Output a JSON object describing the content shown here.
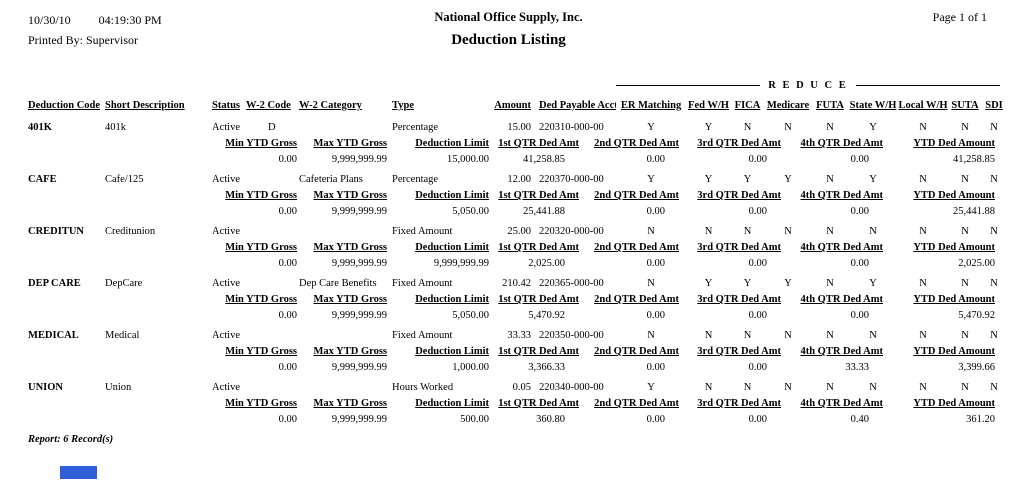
{
  "header": {
    "date": "10/30/10",
    "time": "04:19:30 PM",
    "printed_by": "Printed By: Supervisor",
    "company": "National Office Supply, Inc.",
    "title": "Deduction Listing",
    "page": "Page 1 of 1"
  },
  "reduce": {
    "label": "R E D U C E"
  },
  "columns": {
    "deduction_code": "Deduction Code",
    "short_description": "Short Description",
    "status": "Status",
    "w2_code": "W-2 Code",
    "w2_category": "W-2 Category",
    "type": "Type",
    "amount": "Amount",
    "ded_payable_acct": "Ded Payable Acct",
    "er_matching": "ER Matching",
    "fed_wh": "Fed W/H",
    "fica": "FICA",
    "medicare": "Medicare",
    "futa": "FUTA",
    "state_wh": "State W/H",
    "local_wh": "Local W/H",
    "suta": "SUTA",
    "sdi": "SDI"
  },
  "sub_columns": {
    "min_ytd_gross": "Min YTD Gross",
    "max_ytd_gross": "Max YTD Gross",
    "deduction_limit": "Deduction Limit",
    "q1": "1st QTR Ded Amt",
    "q2": "2nd QTR Ded Amt",
    "q3": "3rd QTR Ded Amt",
    "q4": "4th QTR Ded Amt",
    "ytd": "YTD Ded Amount"
  },
  "records": [
    {
      "code": "401K",
      "short_description": "401k",
      "status": "Active",
      "w2_code": "D",
      "w2_category": "",
      "type": "Percentage",
      "amount": "15.00",
      "ded_payable_acct": "220310-000-00",
      "er_matching": "Y",
      "fed_wh": "Y",
      "fica": "N",
      "medicare": "N",
      "futa": "N",
      "state_wh": "Y",
      "local_wh": "N",
      "suta": "N",
      "sdi": "N",
      "min_ytd_gross": "0.00",
      "max_ytd_gross": "9,999,999.99",
      "deduction_limit": "15,000.00",
      "q1": "41,258.85",
      "q2": "0.00",
      "q3": "0.00",
      "q4": "0.00",
      "ytd": "41,258.85"
    },
    {
      "code": "CAFE",
      "short_description": "Cafe/125",
      "status": "Active",
      "w2_code": "",
      "w2_category": "Cafeteria Plans",
      "type": "Percentage",
      "amount": "12.00",
      "ded_payable_acct": "220370-000-00",
      "er_matching": "Y",
      "fed_wh": "Y",
      "fica": "Y",
      "medicare": "Y",
      "futa": "N",
      "state_wh": "Y",
      "local_wh": "N",
      "suta": "N",
      "sdi": "N",
      "min_ytd_gross": "0.00",
      "max_ytd_gross": "9,999,999.99",
      "deduction_limit": "5,050.00",
      "q1": "25,441.88",
      "q2": "0.00",
      "q3": "0.00",
      "q4": "0.00",
      "ytd": "25,441.88"
    },
    {
      "code": "CREDITUN",
      "short_description": "Creditunion",
      "status": "Active",
      "w2_code": "",
      "w2_category": "",
      "type": "Fixed Amount",
      "amount": "25.00",
      "ded_payable_acct": "220320-000-00",
      "er_matching": "N",
      "fed_wh": "N",
      "fica": "N",
      "medicare": "N",
      "futa": "N",
      "state_wh": "N",
      "local_wh": "N",
      "suta": "N",
      "sdi": "N",
      "min_ytd_gross": "0.00",
      "max_ytd_gross": "9,999,999.99",
      "deduction_limit": "9,999,999.99",
      "q1": "2,025.00",
      "q2": "0.00",
      "q3": "0.00",
      "q4": "0.00",
      "ytd": "2,025.00"
    },
    {
      "code": "DEP CARE",
      "short_description": "DepCare",
      "status": "Active",
      "w2_code": "",
      "w2_category": "Dep Care Benefits",
      "type": "Fixed Amount",
      "amount": "210.42",
      "ded_payable_acct": "220365-000-00",
      "er_matching": "N",
      "fed_wh": "Y",
      "fica": "Y",
      "medicare": "Y",
      "futa": "N",
      "state_wh": "Y",
      "local_wh": "N",
      "suta": "N",
      "sdi": "N",
      "min_ytd_gross": "0.00",
      "max_ytd_gross": "9,999,999.99",
      "deduction_limit": "5,050.00",
      "q1": "5,470.92",
      "q2": "0.00",
      "q3": "0.00",
      "q4": "0.00",
      "ytd": "5,470.92"
    },
    {
      "code": "MEDICAL",
      "short_description": "Medical",
      "status": "Active",
      "w2_code": "",
      "w2_category": "",
      "type": "Fixed Amount",
      "amount": "33.33",
      "ded_payable_acct": "220350-000-00",
      "er_matching": "N",
      "fed_wh": "N",
      "fica": "N",
      "medicare": "N",
      "futa": "N",
      "state_wh": "N",
      "local_wh": "N",
      "suta": "N",
      "sdi": "N",
      "min_ytd_gross": "0.00",
      "max_ytd_gross": "9,999,999.99",
      "deduction_limit": "1,000.00",
      "q1": "3,366.33",
      "q2": "0.00",
      "q3": "0.00",
      "q4": "33.33",
      "ytd": "3,399.66"
    },
    {
      "code": "UNION",
      "short_description": "Union",
      "status": "Active",
      "w2_code": "",
      "w2_category": "",
      "type": "Hours Worked",
      "amount": "0.05",
      "ded_payable_acct": "220340-000-00",
      "er_matching": "Y",
      "fed_wh": "N",
      "fica": "N",
      "medicare": "N",
      "futa": "N",
      "state_wh": "N",
      "local_wh": "N",
      "suta": "N",
      "sdi": "N",
      "min_ytd_gross": "0.00",
      "max_ytd_gross": "9,999,999.99",
      "deduction_limit": "500.00",
      "q1": "360.80",
      "q2": "0.00",
      "q3": "0.00",
      "q4": "0.40",
      "ytd": "361.20"
    }
  ],
  "footer": "Report: 6 Record(s)",
  "ui": {
    "scrollbar_thumb_color": "#2e5fd8"
  }
}
